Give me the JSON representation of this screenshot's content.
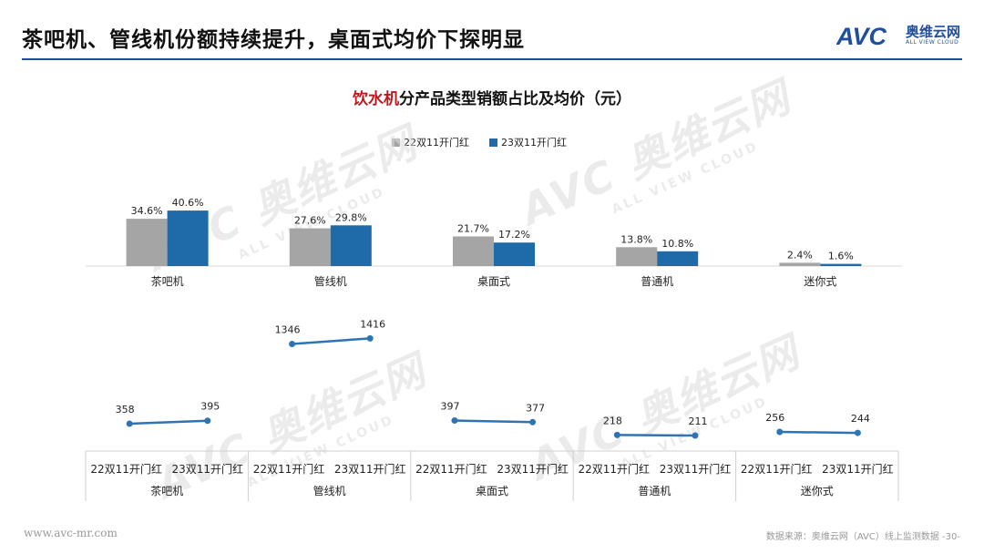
{
  "header": {
    "title": "茶吧机、管线机份额持续提升，桌面式均价下探明显"
  },
  "logo": {
    "mark_text": "AVC",
    "cn": "奥维云网",
    "en": "ALL VIEW CLOUD"
  },
  "watermark": {
    "cn": "奥维云网",
    "mark": "AVC",
    "en": "ALL VIEW CLOUD"
  },
  "chart_title": {
    "highlight": "饮水机",
    "rest": "分产品类型销额占比及均价（元）"
  },
  "footer": {
    "url": "www.avc-mr.com",
    "source": "数据来源：奥维云网（AVC）线上监测数据  -30-"
  },
  "colors": {
    "series1": "#a5a5a5",
    "series2": "#1f6aa8",
    "line": "#2e74b5",
    "title_highlight": "#c0171e",
    "brand": "#1f4e9c"
  },
  "chart_data": [
    {
      "type": "bar",
      "categories": [
        "茶吧机",
        "管线机",
        "桌面式",
        "普通机",
        "迷你式"
      ],
      "series": [
        {
          "name": "22双11开门红",
          "values": [
            34.6,
            27.6,
            21.7,
            13.8,
            2.4
          ],
          "labels": [
            "34.6%",
            "27.6%",
            "21.7%",
            "13.8%",
            "2.4%"
          ]
        },
        {
          "name": "23双11开门红",
          "values": [
            40.6,
            29.8,
            17.2,
            10.8,
            1.6
          ],
          "labels": [
            "40.6%",
            "29.8%",
            "17.2%",
            "10.8%",
            "1.6%"
          ]
        }
      ],
      "unit": "%",
      "legend": "top-center",
      "grid": false
    },
    {
      "type": "line",
      "groups": [
        {
          "category": "茶吧机",
          "x": [
            "22双11开门红",
            "23双11开门红"
          ],
          "values": [
            358,
            395
          ]
        },
        {
          "category": "管线机",
          "x": [
            "22双11开门红",
            "23双11开门红"
          ],
          "values": [
            1346,
            1416
          ]
        },
        {
          "category": "桌面式",
          "x": [
            "22双11开门红",
            "23双11开门红"
          ],
          "values": [
            397,
            377
          ]
        },
        {
          "category": "普通机",
          "x": [
            "22双11开门红",
            "23双11开门红"
          ],
          "values": [
            218,
            211
          ]
        },
        {
          "category": "迷你式",
          "x": [
            "22双11开门红",
            "23双11开门红"
          ],
          "values": [
            256,
            244
          ]
        }
      ],
      "grid": false
    }
  ]
}
